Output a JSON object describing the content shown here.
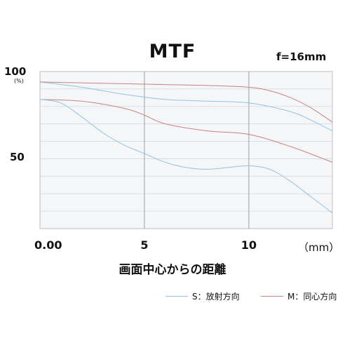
{
  "chart_data": {
    "type": "line",
    "title": "MTF",
    "annotation": "f=16mm",
    "xlabel": "画面中心からの距離",
    "x_unit": "（mm）",
    "y_unit": "(%)",
    "xlim": [
      0,
      14
    ],
    "ylim": [
      10,
      100
    ],
    "x_ticks": [
      {
        "value": 0,
        "label": "0.00"
      },
      {
        "value": 5,
        "label": "5"
      },
      {
        "value": 10,
        "label": "10"
      }
    ],
    "y_ticks": [
      {
        "value": 100,
        "label": "100"
      },
      {
        "value": 50,
        "label": "50"
      }
    ],
    "grid": true,
    "legend_position": "bottom-right",
    "legend": [
      {
        "key": "S",
        "label": "S：放射方向",
        "color": "#8fc4e0"
      },
      {
        "key": "M",
        "label": "M：同心方向",
        "color": "#c98080"
      }
    ],
    "series": [
      {
        "type": "S",
        "color": "#8fc4e0",
        "x": [
          0,
          2,
          4,
          6,
          8,
          10,
          12,
          13,
          14
        ],
        "y": [
          94,
          91,
          87,
          84,
          83,
          82,
          77,
          72,
          66
        ]
      },
      {
        "type": "M",
        "color": "#c98080",
        "x": [
          0,
          2,
          4,
          6,
          8,
          10,
          11,
          12,
          13,
          14
        ],
        "y": [
          94,
          93.5,
          93,
          92.5,
          92,
          91,
          89,
          85,
          79,
          71
        ]
      },
      {
        "type": "M",
        "color": "#c98080",
        "x": [
          0,
          2,
          4,
          5,
          6,
          8,
          10,
          12,
          14
        ],
        "y": [
          84,
          83,
          79,
          75,
          70,
          66,
          64,
          57,
          48
        ]
      },
      {
        "type": "S",
        "color": "#8fc4e0",
        "x": [
          0,
          1,
          2,
          3,
          4,
          5,
          6,
          7,
          8,
          9,
          10,
          11,
          12,
          13,
          14
        ],
        "y": [
          84,
          82,
          74,
          65,
          58,
          53,
          48,
          45,
          44,
          45,
          46,
          44,
          37,
          28,
          19
        ]
      }
    ]
  }
}
